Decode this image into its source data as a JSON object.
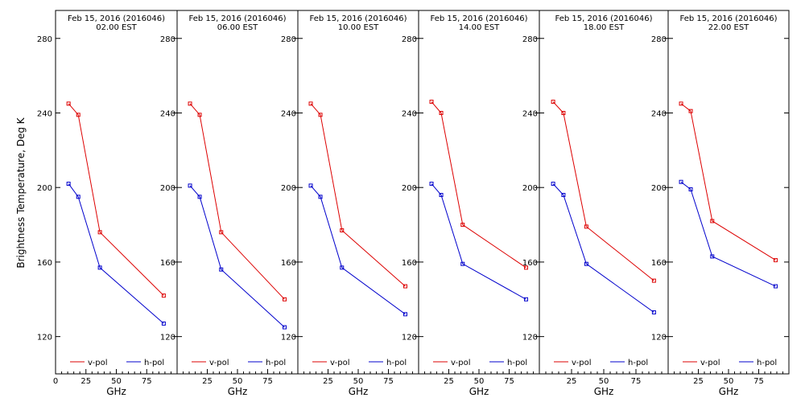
{
  "chart_data": {
    "type": "line",
    "ylabel": "Brightness Temperature, Deg K",
    "xlabel": "GHz",
    "xlim": [
      0,
      100
    ],
    "ylim": [
      100,
      295
    ],
    "x_ticks": [
      0,
      25,
      50,
      75
    ],
    "x_tick_labels": [
      "0",
      "25",
      "50",
      "75"
    ],
    "y_ticks": [
      120,
      160,
      200,
      240,
      280
    ],
    "y_tick_labels": [
      "120",
      "160",
      "200",
      "240",
      "280"
    ],
    "legend": {
      "placement": "bottom",
      "entries": [
        "v-pol",
        "h-pol"
      ]
    },
    "colors": {
      "v-pol": "#dd0000",
      "h-pol": "#0000cc"
    },
    "panels": [
      {
        "title_line1": "Feb 15, 2016 (2016046)",
        "title_line2": "02.00 EST",
        "series": [
          {
            "name": "v-pol",
            "x": [
              10.7,
              18.7,
              36.5,
              89.0
            ],
            "y": [
              245,
              239,
              176,
              142
            ]
          },
          {
            "name": "h-pol",
            "x": [
              10.7,
              18.7,
              36.5,
              89.0
            ],
            "y": [
              202,
              195,
              157,
              127
            ]
          }
        ]
      },
      {
        "title_line1": "Feb 15, 2016 (2016046)",
        "title_line2": "06.00 EST",
        "series": [
          {
            "name": "v-pol",
            "x": [
              10.7,
              18.7,
              36.5,
              89.0
            ],
            "y": [
              245,
              239,
              176,
              140
            ]
          },
          {
            "name": "h-pol",
            "x": [
              10.7,
              18.7,
              36.5,
              89.0
            ],
            "y": [
              201,
              195,
              156,
              125
            ]
          }
        ]
      },
      {
        "title_line1": "Feb 15, 2016 (2016046)",
        "title_line2": "10.00 EST",
        "series": [
          {
            "name": "v-pol",
            "x": [
              10.7,
              18.7,
              36.5,
              89.0
            ],
            "y": [
              245,
              239,
              177,
              147
            ]
          },
          {
            "name": "h-pol",
            "x": [
              10.7,
              18.7,
              36.5,
              89.0
            ],
            "y": [
              201,
              195,
              157,
              132
            ]
          }
        ]
      },
      {
        "title_line1": "Feb 15, 2016 (2016046)",
        "title_line2": "14.00 EST",
        "series": [
          {
            "name": "v-pol",
            "x": [
              10.7,
              18.7,
              36.5,
              89.0
            ],
            "y": [
              246,
              240,
              180,
              157
            ]
          },
          {
            "name": "h-pol",
            "x": [
              10.7,
              18.7,
              36.5,
              89.0
            ],
            "y": [
              202,
              196,
              159,
              140
            ]
          }
        ]
      },
      {
        "title_line1": "Feb 15, 2016 (2016046)",
        "title_line2": "18.00 EST",
        "series": [
          {
            "name": "v-pol",
            "x": [
              10.7,
              18.7,
              36.5,
              89.0
            ],
            "y": [
              246,
              240,
              179,
              150
            ]
          },
          {
            "name": "h-pol",
            "x": [
              10.7,
              18.7,
              36.5,
              89.0
            ],
            "y": [
              202,
              196,
              159,
              133
            ]
          }
        ]
      },
      {
        "title_line1": "Feb 15, 2016 (2016046)",
        "title_line2": "22.00 EST",
        "series": [
          {
            "name": "v-pol",
            "x": [
              10.7,
              18.7,
              36.5,
              89.0
            ],
            "y": [
              245,
              241,
              182,
              161
            ]
          },
          {
            "name": "h-pol",
            "x": [
              10.7,
              18.7,
              36.5,
              89.0
            ],
            "y": [
              203,
              199,
              163,
              147
            ]
          }
        ]
      }
    ]
  }
}
